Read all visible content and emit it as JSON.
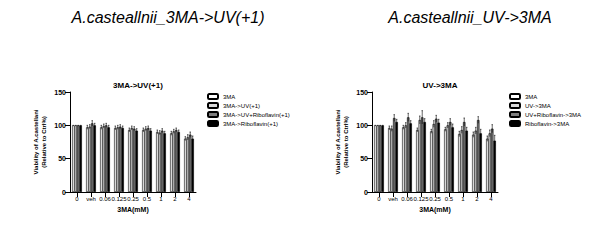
{
  "chart_data": [
    {
      "type": "bar",
      "title": "A.casteallnii_3MA->UV(+1)",
      "subtitle": "3MA->UV(+1)",
      "x_label": "3MA(mM)",
      "y_label": "Viability of A.castellani\n(Relative to Ctrl%)",
      "categories": [
        "0",
        "veh",
        "0.06",
        "0.125",
        "0.25",
        "0.5",
        "1",
        "2",
        "4"
      ],
      "ylim": [
        0,
        150
      ],
      "yticks": [
        0,
        50,
        100,
        150
      ],
      "grid": false,
      "legend": "right",
      "series": [
        {
          "name": "3MA",
          "color": "#ffffff",
          "values": [
            100,
            97,
            97,
            96,
            93,
            93,
            90,
            88,
            80
          ],
          "errors": [
            0,
            3,
            3,
            3,
            3,
            3,
            3,
            3,
            3
          ]
        },
        {
          "name": "3MA->UV(+1)",
          "color": "#d9d9d9",
          "values": [
            100,
            98,
            99,
            97,
            96,
            95,
            89,
            91,
            82
          ],
          "errors": [
            0,
            3,
            3,
            3,
            3,
            3,
            3,
            3,
            4
          ]
        },
        {
          "name": "3MA->UV+Riboflavin(+1)",
          "color": "#7f7f7f",
          "values": [
            100,
            103,
            100,
            98,
            95,
            96,
            92,
            93,
            86
          ],
          "errors": [
            0,
            4,
            3,
            3,
            3,
            3,
            3,
            3,
            4
          ]
        },
        {
          "name": "3MA->Riboflavin(+1)",
          "color": "#000000",
          "values": [
            100,
            100,
            97,
            96,
            92,
            92,
            88,
            90,
            80
          ],
          "errors": [
            0,
            3,
            3,
            3,
            3,
            3,
            3,
            3,
            4
          ]
        }
      ]
    },
    {
      "type": "bar",
      "title": "A.casteallnii_UV->3MA",
      "subtitle": "UV->3MA",
      "x_label": "3MA(mM)",
      "y_label": "Viability of A.castellani\n(Relative to Ctrl%)",
      "categories": [
        "0",
        "veh",
        "0.06",
        "0.125",
        "0.25",
        "0.5",
        "1",
        "2",
        "4"
      ],
      "ylim": [
        0,
        150
      ],
      "yticks": [
        0,
        50,
        100,
        150
      ],
      "grid": false,
      "legend": "right",
      "series": [
        {
          "name": "3MA",
          "color": "#ffffff",
          "values": [
            100,
            96,
            97,
            93,
            91,
            94,
            87,
            86,
            80
          ],
          "errors": [
            0,
            3,
            3,
            3,
            3,
            3,
            4,
            4,
            4
          ]
        },
        {
          "name": "UV->3MA",
          "color": "#d9d9d9",
          "values": [
            100,
            95,
            100,
            108,
            102,
            100,
            93,
            92,
            88
          ],
          "errors": [
            0,
            4,
            4,
            6,
            5,
            4,
            5,
            5,
            5
          ]
        },
        {
          "name": "UV+Riboflavin->3MA",
          "color": "#7f7f7f",
          "values": [
            100,
            111,
            112,
            112,
            110,
            105,
            105,
            108,
            95
          ],
          "errors": [
            0,
            5,
            6,
            10,
            5,
            5,
            6,
            5,
            6
          ]
        },
        {
          "name": "Riboflavin->3MA",
          "color": "#000000",
          "values": [
            100,
            105,
            103,
            105,
            104,
            97,
            92,
            88,
            77
          ],
          "errors": [
            0,
            4,
            4,
            5,
            5,
            5,
            5,
            6,
            8
          ]
        }
      ]
    }
  ]
}
